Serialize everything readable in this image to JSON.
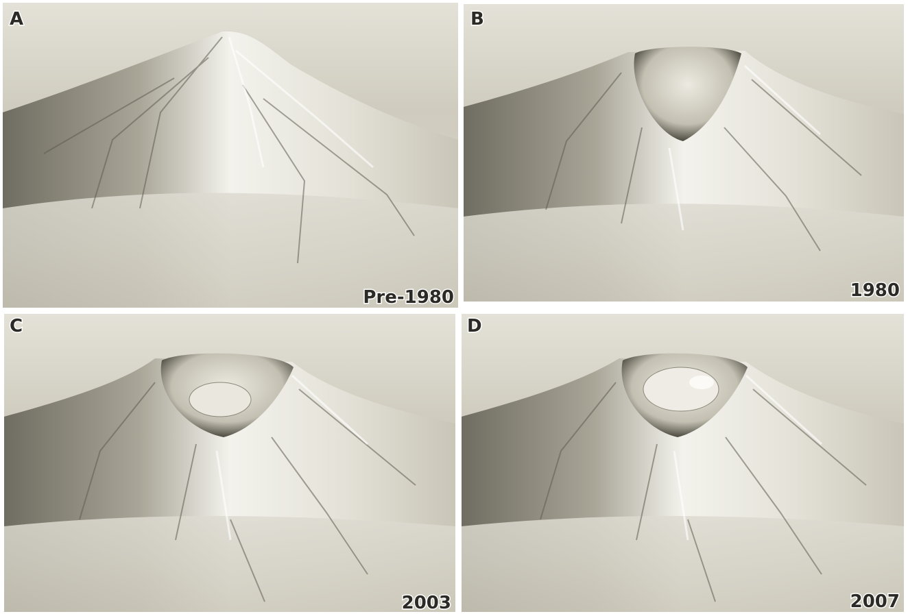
{
  "panels": [
    {
      "letter": "A",
      "label": "Pre-1980"
    },
    {
      "letter": "B",
      "label": "1980"
    },
    {
      "letter": "C",
      "label": "2003"
    },
    {
      "letter": "D",
      "label": "2007"
    }
  ]
}
